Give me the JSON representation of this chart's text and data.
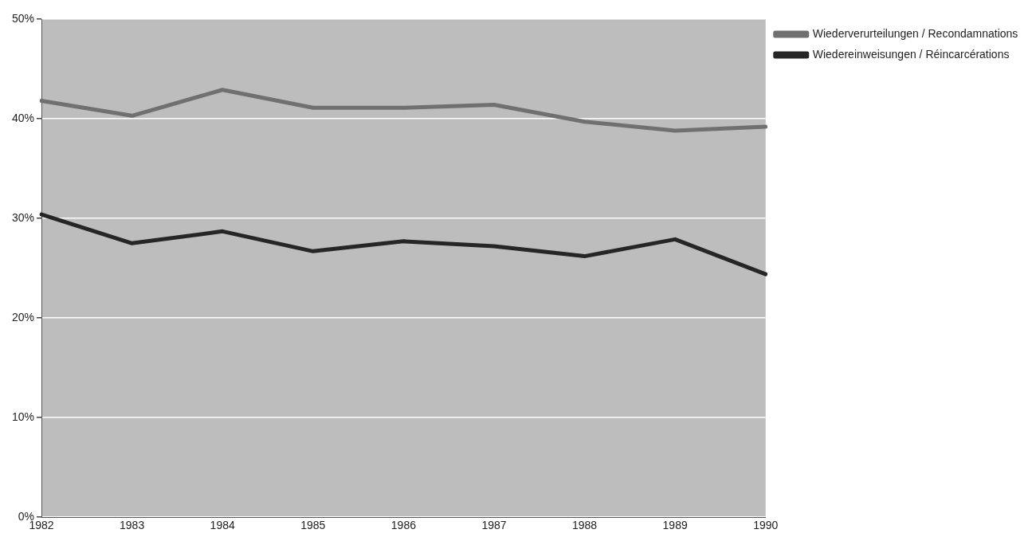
{
  "chart_data": {
    "type": "line",
    "categories": [
      "1982",
      "1983",
      "1984",
      "1985",
      "1986",
      "1987",
      "1988",
      "1989",
      "1990"
    ],
    "series": [
      {
        "name": "Wiederverurteilungen / Recondamnations",
        "color": "#707070",
        "values": [
          41.8,
          40.3,
          42.9,
          41.1,
          41.1,
          41.4,
          39.7,
          38.8,
          39.2
        ]
      },
      {
        "name": "Wiedereinweisungen / Réincarcérations",
        "color": "#262626",
        "values": [
          30.4,
          27.5,
          28.7,
          26.7,
          27.7,
          27.2,
          26.2,
          27.9,
          24.4
        ]
      }
    ],
    "ylim": [
      0,
      50
    ],
    "yticks": [
      {
        "value": 0,
        "label": "0%"
      },
      {
        "value": 10,
        "label": "10%"
      },
      {
        "value": 20,
        "label": "20%"
      },
      {
        "value": 30,
        "label": "30%"
      },
      {
        "value": 40,
        "label": "40%"
      },
      {
        "value": 50,
        "label": "50%"
      }
    ],
    "grid": "y",
    "legend": "top right",
    "marker": "none",
    "line_style": "solid"
  }
}
